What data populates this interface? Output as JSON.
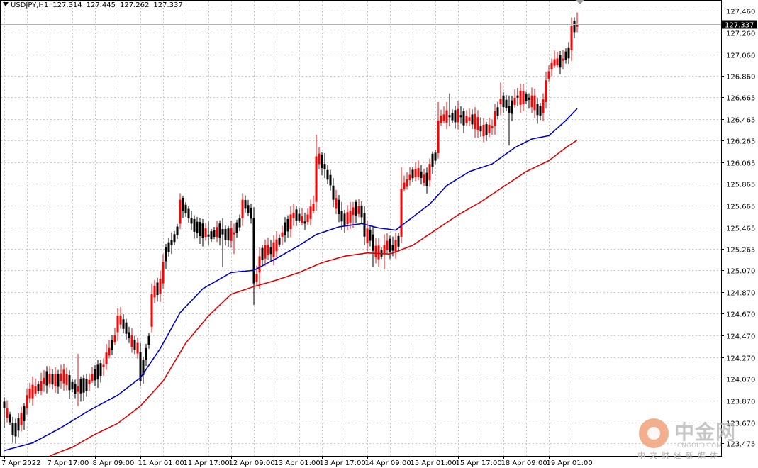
{
  "header": {
    "symbol": "USDJPY,H1",
    "open": "127.314",
    "high": "127.445",
    "low": "127.262",
    "close": "127.337"
  },
  "price_tag": "127.337",
  "watermark": {
    "brand": "中金网",
    "url": "CNGOLD.COM",
    "tagline": "中文财经新媒体"
  },
  "colors": {
    "bull": "#ff0000",
    "bear": "#000000",
    "doji": "#00a000",
    "ma_blue": "#0000c8",
    "ma_red": "#e00000",
    "grid": "#c8c8c8"
  },
  "chart_data": {
    "type": "candlestick",
    "symbol": "USDJPY",
    "timeframe": "H1",
    "current_price": 127.337,
    "ylim": [
      123.36,
      127.56
    ],
    "y_ticks": [
      "127.460",
      "127.260",
      "127.060",
      "126.860",
      "126.665",
      "126.465",
      "126.265",
      "126.065",
      "125.865",
      "125.665",
      "125.465",
      "125.265",
      "125.070",
      "124.870",
      "124.670",
      "124.470",
      "124.270",
      "124.070",
      "123.870",
      "123.670",
      "123.475"
    ],
    "x_ticks": [
      "7 Apr 2022",
      "7 Apr 17:00",
      "8 Apr 09:00",
      "11 Apr 01:00",
      "11 Apr 17:00",
      "12 Apr 09:00",
      "13 Apr 01:00",
      "13 Apr 17:00",
      "14 Apr 09:00",
      "15 Apr 01:00",
      "15 Apr 17:00",
      "18 Apr 09:00",
      "19 Apr 01:00"
    ],
    "anchors": [
      {
        "bar": 0,
        "o": 123.86,
        "c": 123.8,
        "h": 123.9,
        "l": 123.62
      },
      {
        "bar": 3,
        "o": 123.66,
        "c": 123.55,
        "h": 123.72,
        "l": 123.48
      },
      {
        "bar": 8,
        "o": 123.8,
        "c": 123.92,
        "h": 123.98,
        "l": 123.74
      },
      {
        "bar": 14,
        "o": 124.02,
        "c": 124.08,
        "h": 124.15,
        "l": 123.95
      },
      {
        "bar": 20,
        "o": 124.05,
        "c": 124.12,
        "h": 124.2,
        "l": 123.98
      },
      {
        "bar": 26,
        "o": 123.95,
        "c": 124.0,
        "h": 124.3,
        "l": 123.82
      },
      {
        "bar": 30,
        "o": 124.02,
        "c": 124.06,
        "h": 124.12,
        "l": 123.96
      },
      {
        "bar": 35,
        "o": 124.18,
        "c": 124.2,
        "h": 124.26,
        "l": 124.1
      },
      {
        "bar": 40,
        "o": 124.5,
        "c": 124.65,
        "h": 124.72,
        "l": 124.42
      },
      {
        "bar": 44,
        "o": 124.5,
        "c": 124.45,
        "h": 124.55,
        "l": 124.4
      },
      {
        "bar": 48,
        "o": 124.32,
        "c": 124.05,
        "h": 124.4,
        "l": 124.0
      },
      {
        "bar": 52,
        "o": 124.55,
        "c": 124.85,
        "h": 124.95,
        "l": 124.5
      },
      {
        "bar": 56,
        "o": 124.95,
        "c": 125.15,
        "h": 125.22,
        "l": 124.9
      },
      {
        "bar": 59,
        "o": 125.35,
        "c": 125.3,
        "h": 125.42,
        "l": 125.22
      },
      {
        "bar": 62,
        "o": 125.5,
        "c": 125.72,
        "h": 125.78,
        "l": 125.45
      },
      {
        "bar": 66,
        "o": 125.55,
        "c": 125.5,
        "h": 125.62,
        "l": 125.44
      },
      {
        "bar": 72,
        "o": 125.4,
        "c": 125.38,
        "h": 125.52,
        "l": 125.3
      },
      {
        "bar": 77,
        "o": 125.45,
        "c": 125.4,
        "h": 125.55,
        "l": 125.1
      },
      {
        "bar": 81,
        "o": 125.4,
        "c": 125.42,
        "h": 125.5,
        "l": 125.22
      },
      {
        "bar": 84,
        "o": 125.55,
        "c": 125.72,
        "h": 125.78,
        "l": 125.48
      },
      {
        "bar": 88,
        "o": 125.55,
        "c": 124.95,
        "h": 125.65,
        "l": 124.75
      },
      {
        "bar": 90,
        "o": 125.05,
        "c": 125.2,
        "h": 125.28,
        "l": 124.9
      },
      {
        "bar": 94,
        "o": 125.28,
        "c": 125.22,
        "h": 125.35,
        "l": 125.15
      },
      {
        "bar": 98,
        "o": 125.38,
        "c": 125.42,
        "h": 125.48,
        "l": 125.3
      },
      {
        "bar": 102,
        "o": 125.55,
        "c": 125.6,
        "h": 125.68,
        "l": 125.48
      },
      {
        "bar": 106,
        "o": 125.52,
        "c": 125.5,
        "h": 125.6,
        "l": 125.44
      },
      {
        "bar": 110,
        "o": 125.7,
        "c": 126.12,
        "h": 126.32,
        "l": 125.62
      },
      {
        "bar": 113,
        "o": 126.05,
        "c": 126.0,
        "h": 126.15,
        "l": 125.92
      },
      {
        "bar": 116,
        "o": 125.85,
        "c": 125.72,
        "h": 125.92,
        "l": 125.65
      },
      {
        "bar": 119,
        "o": 125.62,
        "c": 125.52,
        "h": 125.7,
        "l": 125.44
      },
      {
        "bar": 123,
        "o": 125.58,
        "c": 125.65,
        "h": 125.7,
        "l": 125.46
      },
      {
        "bar": 127,
        "o": 125.6,
        "c": 125.38,
        "h": 125.66,
        "l": 125.3
      },
      {
        "bar": 130,
        "o": 125.4,
        "c": 125.25,
        "h": 125.48,
        "l": 125.1
      },
      {
        "bar": 134,
        "o": 125.22,
        "c": 125.3,
        "h": 125.4,
        "l": 125.08
      },
      {
        "bar": 137,
        "o": 125.3,
        "c": 125.25,
        "h": 125.38,
        "l": 125.2
      },
      {
        "bar": 140,
        "o": 125.38,
        "c": 125.82,
        "h": 126.02,
        "l": 125.32
      },
      {
        "bar": 143,
        "o": 125.9,
        "c": 125.95,
        "h": 126.02,
        "l": 125.85
      },
      {
        "bar": 147,
        "o": 125.98,
        "c": 125.92,
        "h": 126.04,
        "l": 125.86
      },
      {
        "bar": 150,
        "o": 125.9,
        "c": 126.05,
        "h": 126.1,
        "l": 125.84
      },
      {
        "bar": 153,
        "o": 126.15,
        "c": 126.45,
        "h": 126.62,
        "l": 126.1
      },
      {
        "bar": 157,
        "o": 126.5,
        "c": 126.48,
        "h": 126.7,
        "l": 126.4
      },
      {
        "bar": 161,
        "o": 126.5,
        "c": 126.48,
        "h": 126.58,
        "l": 126.42
      },
      {
        "bar": 164,
        "o": 126.45,
        "c": 126.48,
        "h": 126.56,
        "l": 126.4
      },
      {
        "bar": 168,
        "o": 126.4,
        "c": 126.35,
        "h": 126.48,
        "l": 126.3
      },
      {
        "bar": 172,
        "o": 126.38,
        "c": 126.4,
        "h": 126.46,
        "l": 126.32
      },
      {
        "bar": 175,
        "o": 126.6,
        "c": 126.65,
        "h": 126.8,
        "l": 126.5
      },
      {
        "bar": 178,
        "o": 126.58,
        "c": 126.52,
        "h": 126.68,
        "l": 126.22
      },
      {
        "bar": 181,
        "o": 126.68,
        "c": 126.66,
        "h": 126.75,
        "l": 126.58
      },
      {
        "bar": 185,
        "o": 126.66,
        "c": 126.64,
        "h": 126.7,
        "l": 126.56
      },
      {
        "bar": 188,
        "o": 126.6,
        "c": 126.5,
        "h": 126.66,
        "l": 126.42
      },
      {
        "bar": 191,
        "o": 126.62,
        "c": 126.82,
        "h": 126.9,
        "l": 126.56
      },
      {
        "bar": 193,
        "o": 126.92,
        "c": 126.98,
        "h": 127.02,
        "l": 126.86
      },
      {
        "bar": 197,
        "o": 127.0,
        "c": 127.02,
        "h": 127.1,
        "l": 126.92
      },
      {
        "bar": 200,
        "o": 127.1,
        "c": 127.32,
        "h": 127.4,
        "l": 127.0
      },
      {
        "bar": 202,
        "o": 127.314,
        "c": 127.337,
        "h": 127.445,
        "l": 127.262
      }
    ],
    "ma_blue": [
      {
        "bar": 0,
        "v": 123.41
      },
      {
        "bar": 10,
        "v": 123.48
      },
      {
        "bar": 20,
        "v": 123.62
      },
      {
        "bar": 30,
        "v": 123.78
      },
      {
        "bar": 40,
        "v": 123.92
      },
      {
        "bar": 48,
        "v": 124.08
      },
      {
        "bar": 55,
        "v": 124.35
      },
      {
        "bar": 62,
        "v": 124.68
      },
      {
        "bar": 70,
        "v": 124.9
      },
      {
        "bar": 80,
        "v": 125.05
      },
      {
        "bar": 88,
        "v": 125.07
      },
      {
        "bar": 96,
        "v": 125.18
      },
      {
        "bar": 104,
        "v": 125.3
      },
      {
        "bar": 110,
        "v": 125.4
      },
      {
        "bar": 118,
        "v": 125.47
      },
      {
        "bar": 126,
        "v": 125.5
      },
      {
        "bar": 132,
        "v": 125.46
      },
      {
        "bar": 138,
        "v": 125.44
      },
      {
        "bar": 144,
        "v": 125.56
      },
      {
        "bar": 150,
        "v": 125.68
      },
      {
        "bar": 156,
        "v": 125.85
      },
      {
        "bar": 164,
        "v": 125.98
      },
      {
        "bar": 172,
        "v": 126.05
      },
      {
        "bar": 180,
        "v": 126.2
      },
      {
        "bar": 186,
        "v": 126.28
      },
      {
        "bar": 192,
        "v": 126.31
      },
      {
        "bar": 198,
        "v": 126.45
      },
      {
        "bar": 202,
        "v": 126.56
      }
    ],
    "ma_red": [
      {
        "bar": 16,
        "v": 123.36
      },
      {
        "bar": 24,
        "v": 123.44
      },
      {
        "bar": 32,
        "v": 123.56
      },
      {
        "bar": 40,
        "v": 123.66
      },
      {
        "bar": 48,
        "v": 123.82
      },
      {
        "bar": 56,
        "v": 124.05
      },
      {
        "bar": 64,
        "v": 124.4
      },
      {
        "bar": 72,
        "v": 124.65
      },
      {
        "bar": 80,
        "v": 124.85
      },
      {
        "bar": 88,
        "v": 124.92
      },
      {
        "bar": 96,
        "v": 124.98
      },
      {
        "bar": 104,
        "v": 125.05
      },
      {
        "bar": 112,
        "v": 125.14
      },
      {
        "bar": 120,
        "v": 125.2
      },
      {
        "bar": 128,
        "v": 125.23
      },
      {
        "bar": 136,
        "v": 125.22
      },
      {
        "bar": 144,
        "v": 125.3
      },
      {
        "bar": 152,
        "v": 125.44
      },
      {
        "bar": 160,
        "v": 125.58
      },
      {
        "bar": 168,
        "v": 125.7
      },
      {
        "bar": 176,
        "v": 125.84
      },
      {
        "bar": 184,
        "v": 125.98
      },
      {
        "bar": 192,
        "v": 126.08
      },
      {
        "bar": 198,
        "v": 126.2
      },
      {
        "bar": 202,
        "v": 126.27
      }
    ]
  }
}
